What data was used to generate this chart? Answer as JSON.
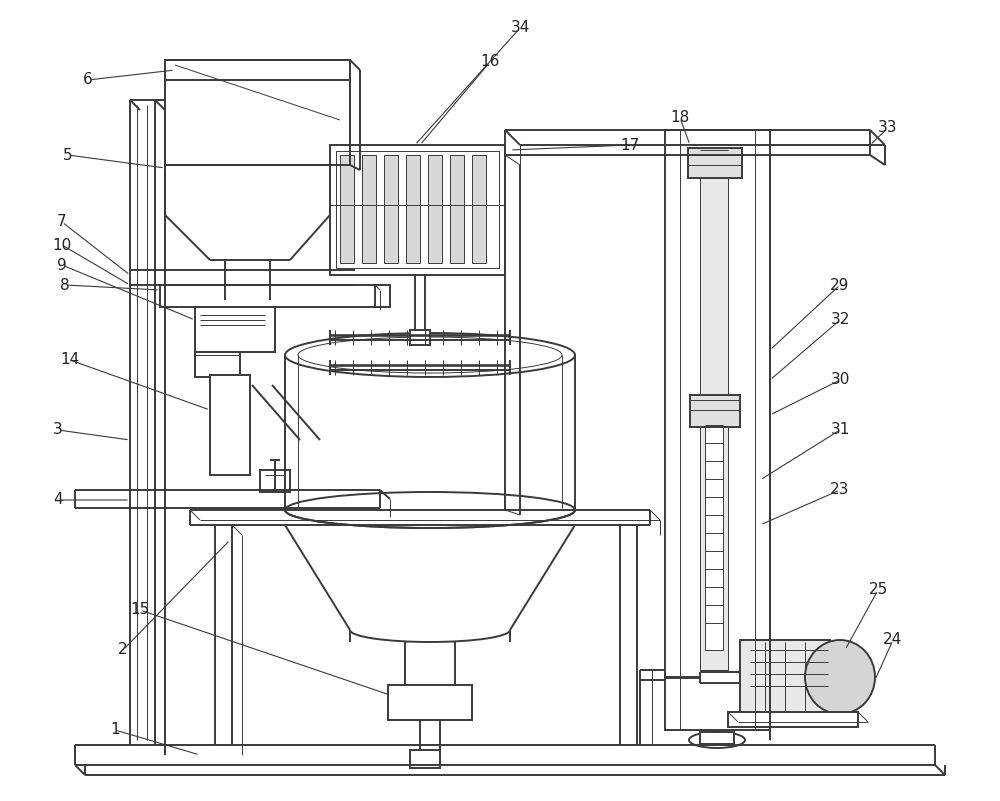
{
  "bg_color": "#ffffff",
  "line_color": "#3a3a3a",
  "line_width": 1.4,
  "thin_line": 0.7,
  "figsize": [
    10.0,
    8.01
  ],
  "dpi": 100
}
